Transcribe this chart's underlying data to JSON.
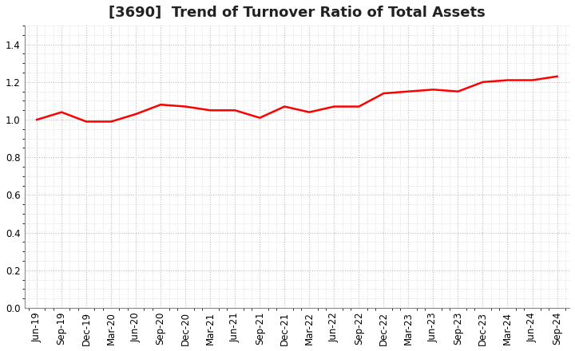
{
  "title": "[3690]  Trend of Turnover Ratio of Total Assets",
  "x_labels": [
    "Jun-19",
    "Sep-19",
    "Dec-19",
    "Mar-20",
    "Jun-20",
    "Sep-20",
    "Dec-20",
    "Mar-21",
    "Jun-21",
    "Sep-21",
    "Dec-21",
    "Mar-22",
    "Jun-22",
    "Sep-22",
    "Dec-22",
    "Mar-23",
    "Jun-23",
    "Sep-23",
    "Dec-23",
    "Mar-24",
    "Jun-24",
    "Sep-24"
  ],
  "values": [
    1.0,
    1.04,
    0.99,
    0.99,
    1.03,
    1.08,
    1.07,
    1.05,
    1.05,
    1.01,
    1.07,
    1.04,
    1.07,
    1.07,
    1.14,
    1.15,
    1.16,
    1.15,
    1.2,
    1.21,
    1.21,
    1.23
  ],
  "line_color": "#FF0000",
  "line_width": 1.8,
  "ylim": [
    0.0,
    1.5
  ],
  "yticks": [
    0.0,
    0.2,
    0.4,
    0.6,
    0.8,
    1.0,
    1.2,
    1.4
  ],
  "grid_color": "#bbbbbb",
  "bg_color": "#ffffff",
  "title_fontsize": 13,
  "tick_fontsize": 8.5
}
